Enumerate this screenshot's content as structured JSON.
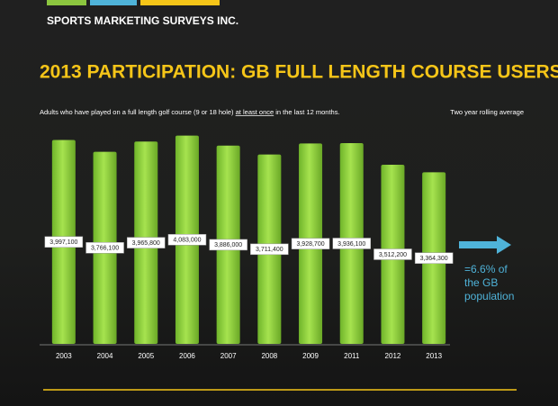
{
  "chart_data": {
    "type": "bar",
    "company": "SPORTS MARKETING SURVEYS INC.",
    "title": "2013 PARTICIPATION: GB FULL LENGTH COURSE USERS",
    "subtitle": [
      "Adults who have played on a full length golf course (9 or 18 hole) ",
      "at least once",
      " in the last 12 months."
    ],
    "note": "Two year rolling average",
    "annotation": [
      "=6.6% of",
      "the GB",
      "population"
    ],
    "categories": [
      "2003",
      "2004",
      "2005",
      "2006",
      "2007",
      "2008",
      "2009",
      "2011",
      "2012",
      "2013"
    ],
    "values": [
      3997100,
      3766100,
      3965800,
      4083000,
      3886000,
      3711400,
      3928700,
      3936100,
      3512200,
      3364300
    ],
    "value_labels": [
      "3,997,100",
      "3,766,100",
      "3,965,800",
      "4,083,000",
      "3,886,000",
      "3,711,400",
      "3,928,700",
      "3,936,100",
      "3,512,200",
      "3,364,300"
    ],
    "color": "#8fd43a",
    "ylim": [
      0,
      4200000
    ]
  }
}
